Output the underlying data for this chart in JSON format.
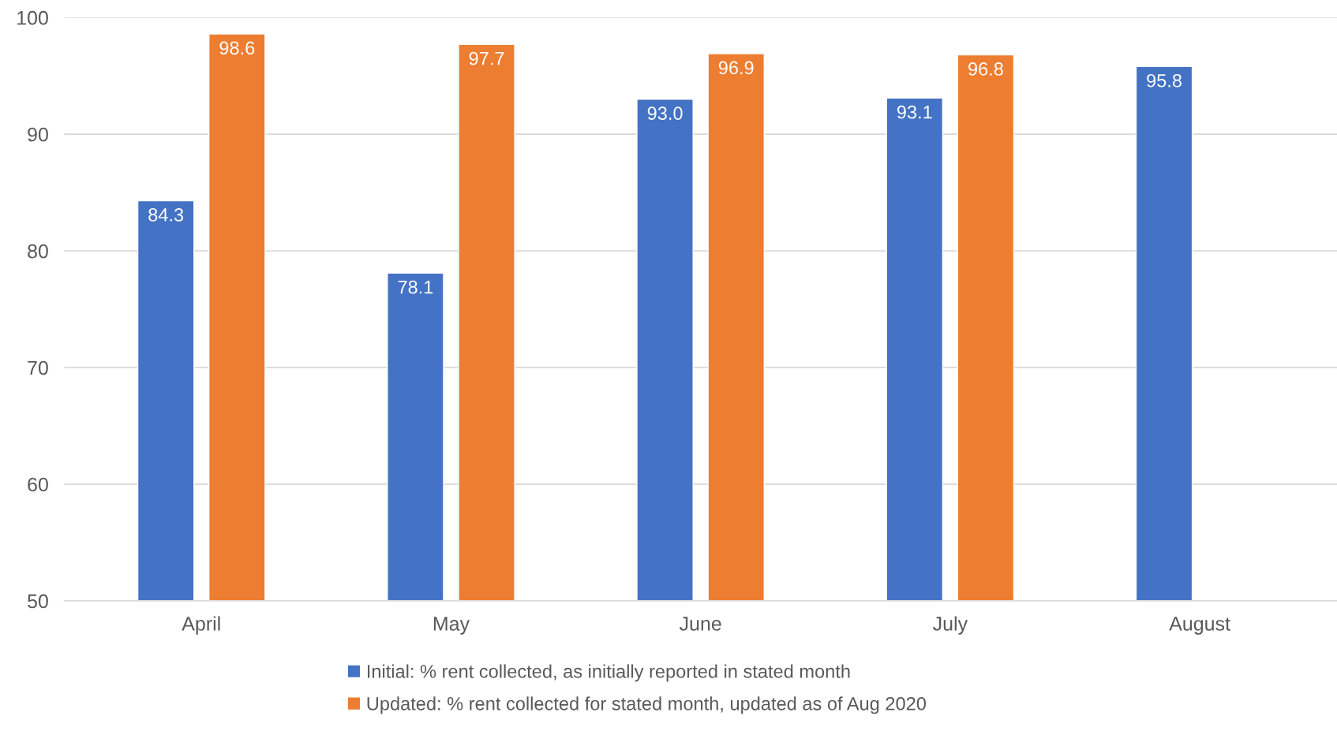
{
  "chart_data": {
    "type": "bar",
    "categories": [
      "April",
      "May",
      "June",
      "July",
      "August"
    ],
    "series": [
      {
        "name": "Initial: % rent collected, as initially reported in stated month",
        "color": "#4472c4",
        "values": [
          84.3,
          78.1,
          93.0,
          93.1,
          95.8
        ],
        "value_labels": [
          "84.3",
          "78.1",
          "93.0",
          "93.1",
          "95.8"
        ]
      },
      {
        "name": "Updated: % rent collected for stated month, updated as of Aug 2020",
        "color": "#ed7d31",
        "values": [
          98.6,
          97.7,
          96.9,
          96.8,
          null
        ],
        "value_labels": [
          "98.6",
          "97.7",
          "96.9",
          "96.8",
          null
        ]
      }
    ],
    "ylim": [
      50,
      100
    ],
    "yticks": [
      50,
      60,
      70,
      80,
      90,
      100
    ],
    "grid": "y",
    "legend": "bottom"
  }
}
